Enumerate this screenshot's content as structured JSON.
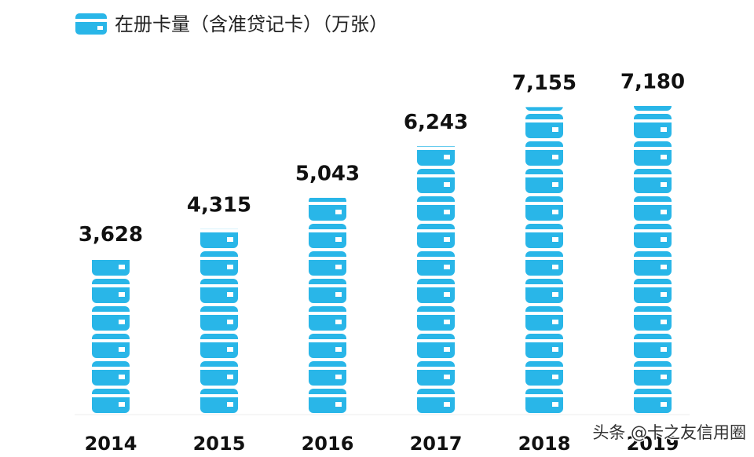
{
  "chart_data": {
    "type": "pictograph-bar",
    "title": "在册卡量（含准贷记卡）（万张）",
    "categories": [
      "2014",
      "2015",
      "2016",
      "2017",
      "2018",
      "2019"
    ],
    "values": [
      3628,
      4315,
      5043,
      6243,
      7155,
      7180
    ],
    "value_labels": [
      "3,628",
      "4,315",
      "5,043",
      "6,243",
      "7,155",
      "7,180"
    ],
    "color": "#29b6e8"
  },
  "watermark": "头条 @卡之友信用圈"
}
